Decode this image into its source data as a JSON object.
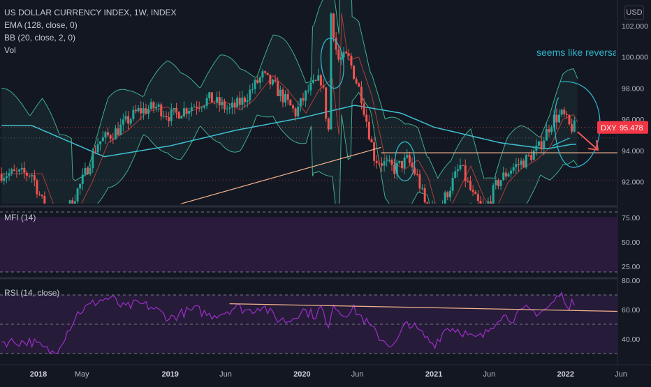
{
  "chart": {
    "symbol_title": "US DOLLAR CURRENCY INDEX, 1W, INDEX",
    "indicators": [
      "EMA (128, close, 0)",
      "BB (20, close, 2, 0)",
      "Vol"
    ],
    "currency_button": "USD",
    "annotation_text": "seems like reversal p",
    "price_tag": {
      "symbol": "DXY",
      "price": "95.478"
    },
    "colors": {
      "background": "#131722",
      "up_candle": "#26a69a",
      "down_candle": "#ef5350",
      "ema": "#3ec1d3",
      "bollinger": "#3fae8c",
      "bollinger_mid": "#b23b3b",
      "trendline": "#f2b38e",
      "annotation": "#2fb4c8",
      "arrow": "#f05656",
      "mfi_fill": "#2a1a3c",
      "rsi_line": "#9c2fc8",
      "rsi_fill": "#261b39"
    }
  },
  "chart_data": {
    "type": "candlestick",
    "price_axis": {
      "ticks": [
        "102.000",
        "100.000",
        "98.000",
        "96.000",
        "94.000",
        "92.000"
      ]
    },
    "time_axis": {
      "labels": [
        "2018",
        "May",
        "2019",
        "Jun",
        "2020",
        "Jun",
        "2021",
        "Jun",
        "2022",
        "Jun"
      ]
    },
    "last_price": 95.478,
    "close_path": [
      [
        2017.95,
        92.5
      ],
      [
        2018.08,
        89.5
      ],
      [
        2018.2,
        89.8
      ],
      [
        2018.33,
        92.0
      ],
      [
        2018.45,
        94.5
      ],
      [
        2018.6,
        95.3
      ],
      [
        2018.75,
        96.5
      ],
      [
        2018.9,
        96.8
      ],
      [
        2019.0,
        96.2
      ],
      [
        2019.15,
        96.8
      ],
      [
        2019.3,
        97.3
      ],
      [
        2019.45,
        96.6
      ],
      [
        2019.55,
        97.2
      ],
      [
        2019.7,
        98.8
      ],
      [
        2019.8,
        98.0
      ],
      [
        2019.95,
        96.4
      ],
      [
        2020.05,
        97.9
      ],
      [
        2020.15,
        98.6
      ],
      [
        2020.2,
        95.0
      ],
      [
        2020.22,
        102.8
      ],
      [
        2020.27,
        99.8
      ],
      [
        2020.35,
        100.0
      ],
      [
        2020.45,
        97.5
      ],
      [
        2020.55,
        93.5
      ],
      [
        2020.7,
        92.8
      ],
      [
        2020.8,
        93.4
      ],
      [
        2020.88,
        92.2
      ],
      [
        2020.95,
        90.0
      ],
      [
        2021.05,
        90.4
      ],
      [
        2021.2,
        93.0
      ],
      [
        2021.3,
        91.0
      ],
      [
        2021.38,
        90.0
      ],
      [
        2021.48,
        91.9
      ],
      [
        2021.58,
        92.8
      ],
      [
        2021.7,
        93.4
      ],
      [
        2021.8,
        94.2
      ],
      [
        2021.9,
        96.0
      ],
      [
        2021.98,
        96.3
      ],
      [
        2022.03,
        95.5
      ],
      [
        2022.08,
        95.478
      ]
    ],
    "ema_path": [
      [
        2017.95,
        95.6
      ],
      [
        2018.5,
        93.6
      ],
      [
        2019.0,
        94.3
      ],
      [
        2019.5,
        95.3
      ],
      [
        2020.0,
        96.1
      ],
      [
        2020.4,
        96.9
      ],
      [
        2020.75,
        96.4
      ],
      [
        2021.0,
        95.5
      ],
      [
        2021.5,
        94.5
      ],
      [
        2021.85,
        94.1
      ],
      [
        2022.05,
        94.4
      ]
    ],
    "mfi_panel": {
      "ticks": [
        "75.00",
        "50.00",
        "25.00"
      ],
      "title": "MFI (14)"
    },
    "rsi_panel": {
      "ticks": [
        "80.00",
        "60.00",
        "40.00"
      ],
      "title": "RSI (14, close)",
      "path": [
        [
          2017.95,
          38
        ],
        [
          2018.05,
          33
        ],
        [
          2018.12,
          30
        ],
        [
          2018.2,
          42
        ],
        [
          2018.3,
          58
        ],
        [
          2018.45,
          66
        ],
        [
          2018.55,
          68
        ],
        [
          2018.65,
          61
        ],
        [
          2018.75,
          64
        ],
        [
          2018.85,
          62
        ],
        [
          2019.0,
          54
        ],
        [
          2019.1,
          58
        ],
        [
          2019.2,
          60
        ],
        [
          2019.3,
          56
        ],
        [
          2019.4,
          58
        ],
        [
          2019.5,
          62
        ],
        [
          2019.6,
          59
        ],
        [
          2019.7,
          63
        ],
        [
          2019.8,
          54
        ],
        [
          2019.9,
          52
        ],
        [
          2020.0,
          60
        ],
        [
          2020.1,
          56
        ],
        [
          2020.15,
          62
        ],
        [
          2020.2,
          44
        ],
        [
          2020.23,
          66
        ],
        [
          2020.3,
          57
        ],
        [
          2020.4,
          60
        ],
        [
          2020.5,
          50
        ],
        [
          2020.6,
          40
        ],
        [
          2020.7,
          35
        ],
        [
          2020.8,
          52
        ],
        [
          2020.9,
          44
        ],
        [
          2021.0,
          36
        ],
        [
          2021.1,
          48
        ],
        [
          2021.2,
          46
        ],
        [
          2021.3,
          40
        ],
        [
          2021.38,
          42
        ],
        [
          2021.5,
          56
        ],
        [
          2021.6,
          54
        ],
        [
          2021.7,
          60
        ],
        [
          2021.8,
          58
        ],
        [
          2021.88,
          62
        ],
        [
          2021.95,
          70
        ],
        [
          2022.0,
          68
        ],
        [
          2022.03,
          58
        ],
        [
          2022.06,
          68
        ],
        [
          2022.08,
          58
        ]
      ]
    }
  }
}
